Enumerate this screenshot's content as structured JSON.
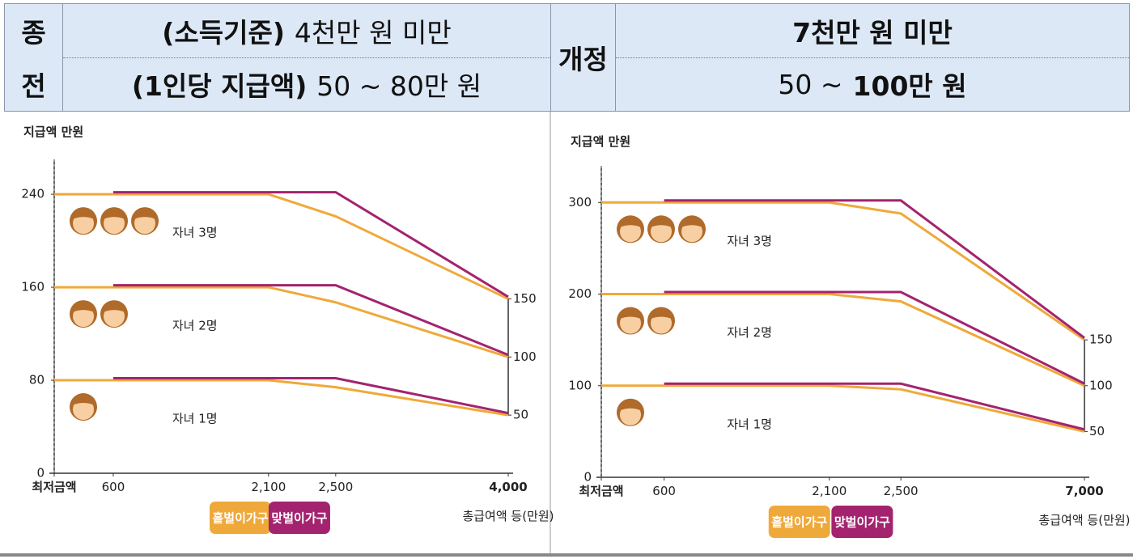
{
  "table": {
    "old_label": [
      "종",
      "전"
    ],
    "old_rows": [
      [
        "(소득기준)",
        "4천만 원 미만"
      ],
      [
        "(1인당 지급액)",
        "50 ~ 80만 원"
      ]
    ],
    "new_label": "개정",
    "new_rows": [
      [
        "7천만 원 미만"
      ],
      [
        "50 ~",
        "100만 원"
      ]
    ]
  },
  "chart_data": [
    {
      "type": "line",
      "ylabel": "지급액 만원",
      "xlabel": "총급여액 등(만원)",
      "categories": [
        "최저금액",
        "600",
        "2,100",
        "2,500",
        "4,000"
      ],
      "ylim": [
        0,
        270
      ],
      "yticks": [
        0,
        80,
        160,
        240
      ],
      "y2lim": [
        0,
        270
      ],
      "y2ticks": [
        50,
        100,
        150
      ],
      "group_labels": [
        "자녀 3명",
        "자녀 2명",
        "자녀 1명"
      ],
      "series": [
        {
          "name": "홑벌이가구",
          "color": "#efa93a",
          "values": [
            [
              240,
              240,
              240,
              221,
              150
            ],
            [
              160,
              160,
              160,
              147,
              100
            ],
            [
              80,
              80,
              80,
              74,
              50
            ]
          ]
        },
        {
          "name": "맞벌이가구",
          "color": "#a3236f",
          "values": [
            [
              null,
              240,
              240,
              240,
              150
            ],
            [
              null,
              160,
              160,
              160,
              100
            ],
            [
              null,
              80,
              80,
              80,
              50
            ]
          ]
        }
      ]
    },
    {
      "type": "line",
      "ylabel": "지급액 만원",
      "xlabel": "총급여액 등(만원)",
      "categories": [
        "최저금액",
        "600",
        "2,100",
        "2,500",
        "7,000"
      ],
      "ylim": [
        0,
        340
      ],
      "yticks": [
        0,
        100,
        200,
        300
      ],
      "y2lim": [
        0,
        340
      ],
      "y2ticks": [
        50,
        100,
        150
      ],
      "group_labels": [
        "자녀 3명",
        "자녀 2명",
        "자녀 1명"
      ],
      "series": [
        {
          "name": "홑벌이가구",
          "color": "#efa93a",
          "values": [
            [
              300,
              300,
              300,
              288,
              150
            ],
            [
              200,
              200,
              200,
              192,
              100
            ],
            [
              100,
              100,
              100,
              96,
              50
            ]
          ]
        },
        {
          "name": "맞벌이가구",
          "color": "#a3236f",
          "values": [
            [
              null,
              300,
              300,
              300,
              150
            ],
            [
              null,
              200,
              200,
              200,
              100
            ],
            [
              null,
              100,
              100,
              100,
              50
            ]
          ]
        }
      ]
    }
  ]
}
